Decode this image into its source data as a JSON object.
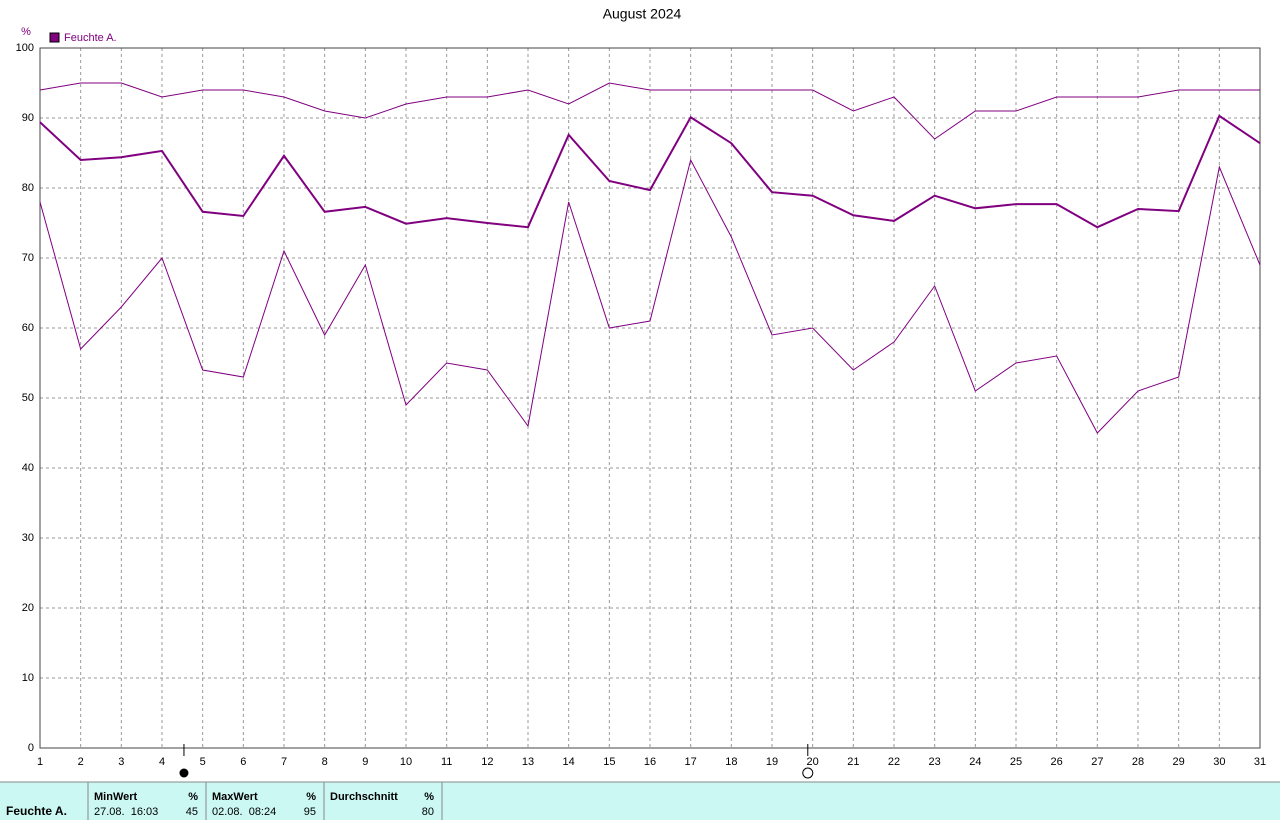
{
  "chart_data": {
    "type": "line",
    "title": "August 2024",
    "y_label": "%",
    "x": [
      1,
      2,
      3,
      4,
      5,
      6,
      7,
      8,
      9,
      10,
      11,
      12,
      13,
      14,
      15,
      16,
      17,
      18,
      19,
      20,
      21,
      22,
      23,
      24,
      25,
      26,
      27,
      28,
      29,
      30,
      31
    ],
    "series": [
      {
        "name": "Feuchte A.",
        "color": "#800080",
        "values": [
          89.4,
          84.0,
          84.4,
          85.3,
          76.6,
          76.0,
          84.6,
          76.6,
          77.3,
          74.9,
          75.7,
          75.0,
          74.4,
          87.6,
          81.0,
          79.7,
          90.1,
          86.4,
          79.4,
          78.9,
          76.1,
          75.3,
          78.9,
          77.1,
          77.7,
          77.7,
          74.4,
          77.0,
          76.7,
          90.3,
          86.4
        ],
        "max": [
          94,
          95,
          95,
          93,
          94,
          94,
          93,
          91,
          90,
          92,
          93,
          93,
          94,
          92,
          95,
          94,
          94,
          94,
          94,
          94,
          91,
          93,
          87,
          91,
          91,
          93,
          93,
          93,
          94,
          94,
          94
        ],
        "min": [
          78,
          57,
          63,
          70,
          54,
          53,
          71,
          59,
          69,
          49,
          55,
          54,
          46,
          78,
          60,
          61,
          84,
          73,
          59,
          60,
          54,
          58,
          66,
          51,
          55,
          56,
          45,
          51,
          53,
          83,
          69
        ]
      }
    ],
    "xlim": [
      1,
      31
    ],
    "xticks": [
      1,
      2,
      3,
      4,
      5,
      6,
      7,
      8,
      9,
      10,
      11,
      12,
      13,
      14,
      15,
      16,
      17,
      18,
      19,
      20,
      21,
      22,
      23,
      24,
      25,
      26,
      27,
      28,
      29,
      30,
      31
    ],
    "ylim": [
      0,
      100
    ],
    "yticks": [
      0,
      10,
      20,
      30,
      40,
      50,
      60,
      70,
      80,
      90,
      100
    ],
    "grid": true,
    "legend": "top-left",
    "new_moon_x": 4.54,
    "full_moon_x": 19.88
  },
  "stats": {
    "row_label": "Feuchte A.",
    "columns": [
      {
        "header": "MinWert",
        "unit": "%",
        "time": "27.08.  16:03",
        "value": 45
      },
      {
        "header": "MaxWert",
        "unit": "%",
        "time": "02.08.  08:24",
        "value": 95
      },
      {
        "header": "Durchschnitt",
        "unit": "%",
        "value": 80
      }
    ]
  }
}
